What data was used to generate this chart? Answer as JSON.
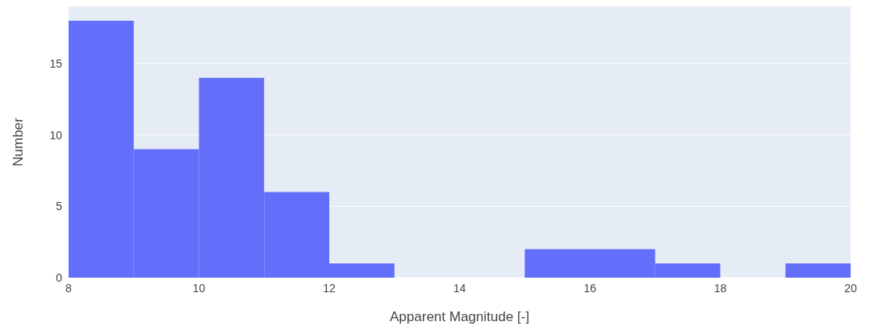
{
  "chart_data": {
    "type": "histogram",
    "xlabel": "Apparent Magnitude [-]",
    "ylabel": "Number",
    "bins": [
      8,
      9,
      10,
      11,
      12,
      13,
      14,
      15,
      16,
      17,
      18,
      19,
      20
    ],
    "values": [
      18,
      9,
      14,
      6,
      1,
      0,
      0,
      2,
      2,
      1,
      0,
      1
    ],
    "color": "#636efa",
    "xlim": [
      8,
      20
    ],
    "xticks": [
      8,
      10,
      12,
      14,
      16,
      18,
      20
    ],
    "ylim": [
      0,
      19
    ],
    "yticks": [
      0,
      5,
      10,
      15
    ],
    "grid": "y",
    "legend": false
  }
}
